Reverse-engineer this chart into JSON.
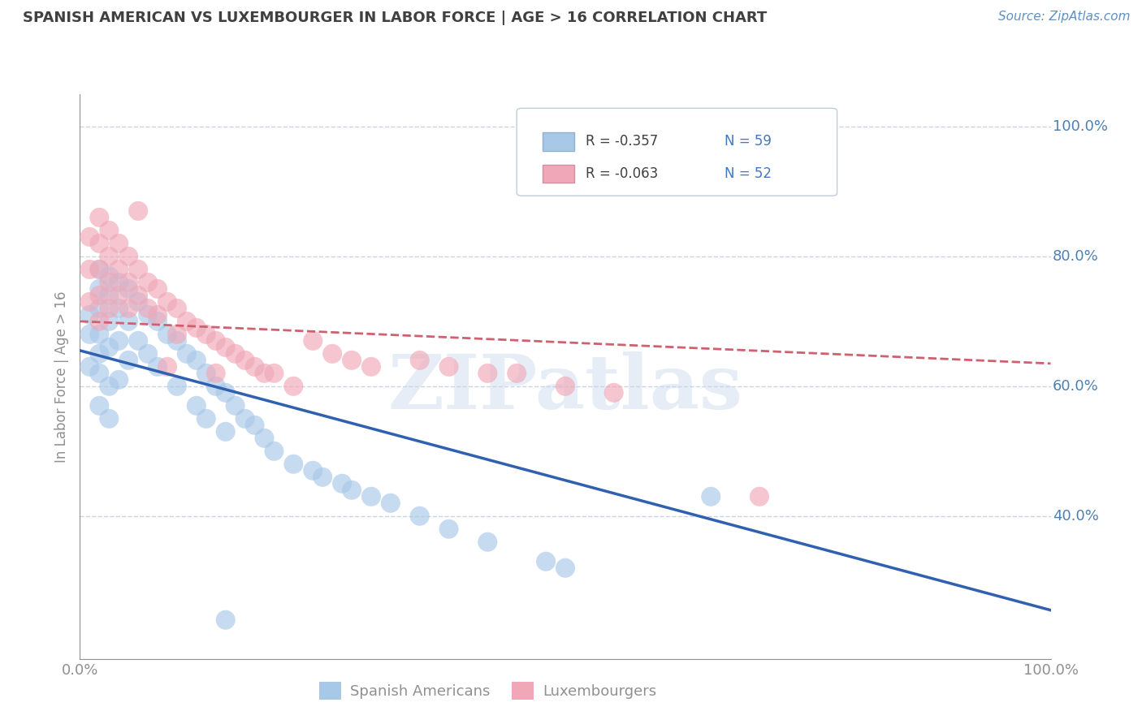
{
  "title": "SPANISH AMERICAN VS LUXEMBOURGER IN LABOR FORCE | AGE > 16 CORRELATION CHART",
  "source": "Source: ZipAtlas.com",
  "ylabel": "In Labor Force | Age > 16",
  "watermark": "ZIPatlas",
  "r_blue": "-0.357",
  "n_blue": "59",
  "r_pink": "-0.063",
  "n_pink": "52",
  "legend_label1": "Spanish Americans",
  "legend_label2": "Luxembourgers",
  "xmin": 0.0,
  "xmax": 1.0,
  "ymin": 0.18,
  "ymax": 1.05,
  "yticks": [
    0.4,
    0.6,
    0.8,
    1.0
  ],
  "ytick_labels": [
    "40.0%",
    "60.0%",
    "80.0%",
    "100.0%"
  ],
  "xticks": [
    0.0,
    1.0
  ],
  "xtick_labels": [
    "0.0%",
    "100.0%"
  ],
  "blue_color": "#A8C8E8",
  "pink_color": "#F0A8B8",
  "blue_line_color": "#3060B0",
  "pink_line_color": "#D06070",
  "title_color": "#404040",
  "axis_color": "#909090",
  "tick_label_color": "#5080B0",
  "grid_color": "#C8D4E4",
  "blue_scatter_x": [
    0.01,
    0.01,
    0.01,
    0.02,
    0.02,
    0.02,
    0.02,
    0.02,
    0.02,
    0.02,
    0.03,
    0.03,
    0.03,
    0.03,
    0.03,
    0.03,
    0.04,
    0.04,
    0.04,
    0.04,
    0.05,
    0.05,
    0.05,
    0.06,
    0.06,
    0.07,
    0.07,
    0.08,
    0.08,
    0.09,
    0.1,
    0.1,
    0.11,
    0.12,
    0.12,
    0.13,
    0.13,
    0.14,
    0.15,
    0.15,
    0.16,
    0.17,
    0.18,
    0.19,
    0.2,
    0.22,
    0.24,
    0.25,
    0.27,
    0.28,
    0.3,
    0.32,
    0.35,
    0.38,
    0.42,
    0.48,
    0.5,
    0.65,
    0.15
  ],
  "blue_scatter_y": [
    0.71,
    0.68,
    0.63,
    0.78,
    0.75,
    0.72,
    0.68,
    0.65,
    0.62,
    0.57,
    0.77,
    0.74,
    0.7,
    0.66,
    0.6,
    0.55,
    0.76,
    0.72,
    0.67,
    0.61,
    0.75,
    0.7,
    0.64,
    0.73,
    0.67,
    0.71,
    0.65,
    0.7,
    0.63,
    0.68,
    0.67,
    0.6,
    0.65,
    0.64,
    0.57,
    0.62,
    0.55,
    0.6,
    0.59,
    0.53,
    0.57,
    0.55,
    0.54,
    0.52,
    0.5,
    0.48,
    0.47,
    0.46,
    0.45,
    0.44,
    0.43,
    0.42,
    0.4,
    0.38,
    0.36,
    0.33,
    0.32,
    0.43,
    0.24
  ],
  "pink_scatter_x": [
    0.01,
    0.01,
    0.01,
    0.02,
    0.02,
    0.02,
    0.02,
    0.02,
    0.03,
    0.03,
    0.03,
    0.03,
    0.04,
    0.04,
    0.04,
    0.05,
    0.05,
    0.05,
    0.06,
    0.06,
    0.07,
    0.07,
    0.08,
    0.08,
    0.09,
    0.1,
    0.1,
    0.11,
    0.12,
    0.13,
    0.14,
    0.15,
    0.16,
    0.17,
    0.18,
    0.19,
    0.2,
    0.22,
    0.24,
    0.26,
    0.28,
    0.3,
    0.35,
    0.38,
    0.42,
    0.45,
    0.5,
    0.55,
    0.7,
    0.14,
    0.06,
    0.09
  ],
  "pink_scatter_y": [
    0.83,
    0.78,
    0.73,
    0.86,
    0.82,
    0.78,
    0.74,
    0.7,
    0.84,
    0.8,
    0.76,
    0.72,
    0.82,
    0.78,
    0.74,
    0.8,
    0.76,
    0.72,
    0.78,
    0.74,
    0.76,
    0.72,
    0.75,
    0.71,
    0.73,
    0.72,
    0.68,
    0.7,
    0.69,
    0.68,
    0.67,
    0.66,
    0.65,
    0.64,
    0.63,
    0.62,
    0.62,
    0.6,
    0.67,
    0.65,
    0.64,
    0.63,
    0.64,
    0.63,
    0.62,
    0.62,
    0.6,
    0.59,
    0.43,
    0.62,
    0.87,
    0.63
  ],
  "blue_trend_x": [
    0.0,
    1.0
  ],
  "blue_trend_y": [
    0.655,
    0.255
  ],
  "pink_trend_x": [
    0.0,
    1.0
  ],
  "pink_trend_y": [
    0.7,
    0.635
  ]
}
